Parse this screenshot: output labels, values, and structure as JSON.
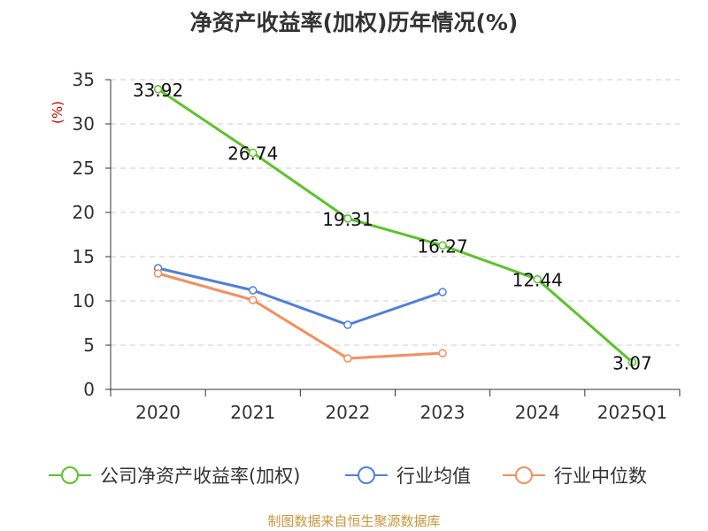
{
  "title": "净资产收益率(加权)历年情况(%)",
  "source": "制图数据来自恒生聚源数据库",
  "colors": {
    "company": "#5cc22a",
    "industry_avg": "#4e7fdb",
    "industry_median": "#f58e5c",
    "source_text": "#c8963c",
    "unit_text": "#cc0000",
    "axis": "#333333",
    "grid": "#cccccc"
  },
  "chart_data": {
    "type": "line",
    "title": "净资产收益率(加权)历年情况(%)",
    "ylabel": "(%)",
    "xlabel": "",
    "categories": [
      "2020",
      "2021",
      "2022",
      "2023",
      "2024",
      "2025Q1"
    ],
    "ylim": [
      0,
      35
    ],
    "yticks": [
      0,
      5,
      10,
      15,
      20,
      25,
      30,
      35
    ],
    "grid": "horizontal dashed",
    "legend_position": "bottom",
    "series": [
      {
        "name": "公司净资产收益率(加权)",
        "color": "#5cc22a",
        "values": [
          33.92,
          26.74,
          19.31,
          16.27,
          12.44,
          3.07
        ],
        "labels": [
          "33.92",
          "26.74",
          "19.31",
          "16.27",
          "12.44",
          "3.07"
        ]
      },
      {
        "name": "行业均值",
        "color": "#4e7fdb",
        "values": [
          13.7,
          11.2,
          7.3,
          11.0,
          null,
          null
        ]
      },
      {
        "name": "行业中位数",
        "color": "#f58e5c",
        "values": [
          13.1,
          10.1,
          3.5,
          4.1,
          null,
          null
        ]
      }
    ]
  }
}
